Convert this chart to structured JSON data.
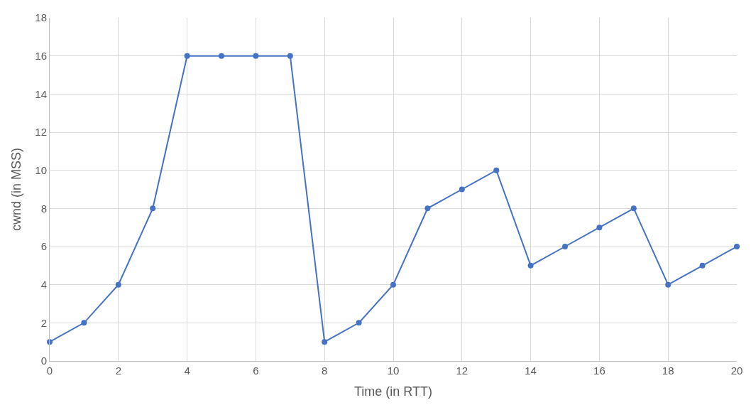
{
  "chart_data": {
    "type": "line",
    "xlabel": "Time (in RTT)",
    "ylabel": "cwnd (in MSS)",
    "x": [
      0,
      1,
      2,
      3,
      4,
      5,
      6,
      7,
      8,
      9,
      10,
      11,
      12,
      13,
      14,
      15,
      16,
      17,
      18,
      19,
      20
    ],
    "series": [
      {
        "color": "#4472c4",
        "values": [
          1,
          2,
          4,
          8,
          16,
          16,
          16,
          16,
          1,
          2,
          4,
          8,
          9,
          10,
          5,
          6,
          7,
          8,
          4,
          5,
          6
        ]
      }
    ],
    "xlim": [
      0,
      20
    ],
    "xticks": [
      0,
      2,
      4,
      6,
      8,
      10,
      12,
      14,
      16,
      18,
      20
    ],
    "ylim": [
      0,
      18
    ],
    "yticks": [
      0,
      2,
      4,
      6,
      8,
      10,
      12,
      14,
      16,
      18
    ],
    "grid": true,
    "marker": "circle",
    "line_style": "solid"
  }
}
